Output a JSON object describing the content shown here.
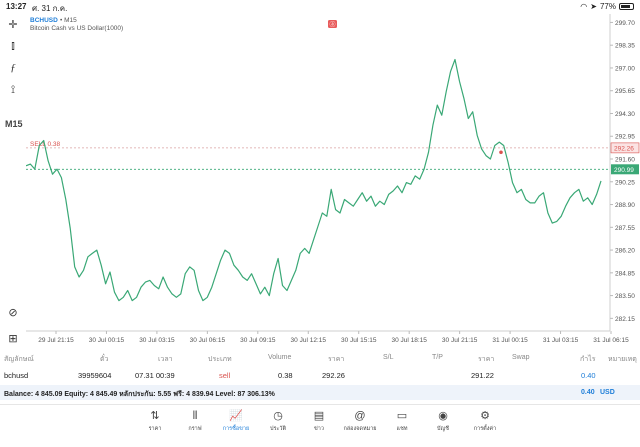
{
  "status": {
    "time": "13:27",
    "date": "ศ. 31 ก.ค.",
    "battery": "77%"
  },
  "tools": [
    "crosshair-icon",
    "candles-icon",
    "function-icon",
    "objects-icon"
  ],
  "chart_header": {
    "symbol": "BCHUSD",
    "timeframe_suffix": "• M15",
    "description": "Bitcoin Cash vs US Dollar(1000)"
  },
  "timeframe": "M15",
  "chart_data": {
    "type": "line",
    "title": "",
    "ylim": [
      281.4,
      300.2
    ],
    "y_ticks": [
      "299.70",
      "298.35",
      "297.00",
      "295.65",
      "294.30",
      "292.95",
      "291.60",
      "290.25",
      "288.90",
      "287.55",
      "286.20",
      "284.85",
      "283.50",
      "282.15"
    ],
    "x_ticks": [
      "29 Jul 21:15",
      "30 Jul 00:15",
      "30 Jul 03:15",
      "30 Jul 06:15",
      "30 Jul 09:15",
      "30 Jul 12:15",
      "30 Jul 15:15",
      "30 Jul 18:15",
      "30 Jul 21:15",
      "31 Jul 00:15",
      "31 Jul 03:15",
      "31 Jul 06:15"
    ],
    "values": [
      291.2,
      291.3,
      291.0,
      292.4,
      292.7,
      291.5,
      290.7,
      291.0,
      290.5,
      289.2,
      287.5,
      285.2,
      284.6,
      285.0,
      285.8,
      286.0,
      286.2,
      285.3,
      284.2,
      284.9,
      283.7,
      283.2,
      283.4,
      283.8,
      283.2,
      283.4,
      284.0,
      284.3,
      284.4,
      284.1,
      283.9,
      284.6,
      284.0,
      283.6,
      283.4,
      283.6,
      284.8,
      285.2,
      285.0,
      283.8,
      283.2,
      283.4,
      284.0,
      284.8,
      285.6,
      286.2,
      286.0,
      285.3,
      285.0,
      284.6,
      284.4,
      284.8,
      284.2,
      283.6,
      284.0,
      283.5,
      284.8,
      285.7,
      284.1,
      283.8,
      284.4,
      285.0,
      286.0,
      286.3,
      286.0,
      286.8,
      287.6,
      288.4,
      288.2,
      289.8,
      288.6,
      288.4,
      289.2,
      289.0,
      288.8,
      289.2,
      289.6,
      289.1,
      289.4,
      288.8,
      289.1,
      288.9,
      289.5,
      289.7,
      290.0,
      289.6,
      290.2,
      290.1,
      290.6,
      290.4,
      291.0,
      292.0,
      293.6,
      294.8,
      294.2,
      295.6,
      296.8,
      297.5,
      296.2,
      295.2,
      294.0,
      294.4,
      293.0,
      292.2,
      291.8,
      291.6,
      292.4,
      292.6,
      292.4,
      291.4,
      290.2,
      289.6,
      289.8,
      289.2,
      289.0,
      289.0,
      289.4,
      289.6,
      288.4,
      287.8,
      287.9,
      288.2,
      288.8,
      289.3,
      289.6,
      289.8,
      289.1,
      289.3,
      288.9,
      289.5,
      290.3
    ],
    "current_price": "290.99",
    "order_price": "292.26",
    "order_label": "SELL 0.38",
    "series_color": "#3aa876",
    "watermark": "ⓐ"
  },
  "columns": [
    "สัญลักษณ์",
    "ตั๋ว",
    "เวลา",
    "ประเภท",
    "Volume",
    "ราคา",
    "S/L",
    "T/P",
    "ราคา",
    "Swap",
    "กำไร",
    "หมายเหตุ"
  ],
  "position": {
    "symbol": "bchusd",
    "ticket": "39959604",
    "time": "07.31 00:39",
    "type": "sell",
    "volume": "0.38",
    "open_price": "292.26",
    "sl": "",
    "tp": "",
    "price": "291.22",
    "swap": "",
    "profit": "0.40",
    "comment": ""
  },
  "balance": {
    "text": "Balance: 4 845.09 Equity: 4 845.49 หลักประกัน: 5.55 ฟรี: 4 839.94 Level: 87 306.13%",
    "profit": "0.40",
    "currency": "USD"
  },
  "tabs": [
    {
      "label": "ราคา",
      "icon": "⇅",
      "name": "quotes-icon"
    },
    {
      "label": "กราฟ",
      "icon": "⫴",
      "name": "chart-icon"
    },
    {
      "label": "การซื้อขาย",
      "icon": "📈",
      "name": "trade-icon",
      "active": true
    },
    {
      "label": "ประวัติ",
      "icon": "◷",
      "name": "history-icon"
    },
    {
      "label": "ข่าว",
      "icon": "▤",
      "name": "news-icon"
    },
    {
      "label": "กล่องจดหมาย",
      "icon": "@",
      "name": "mailbox-icon"
    },
    {
      "label": "แชท",
      "icon": "▭",
      "name": "chat-icon"
    },
    {
      "label": "บัญชี",
      "icon": "◉",
      "name": "accounts-icon"
    },
    {
      "label": "การตั้งค่า",
      "icon": "⚙",
      "name": "settings-icon"
    }
  ]
}
